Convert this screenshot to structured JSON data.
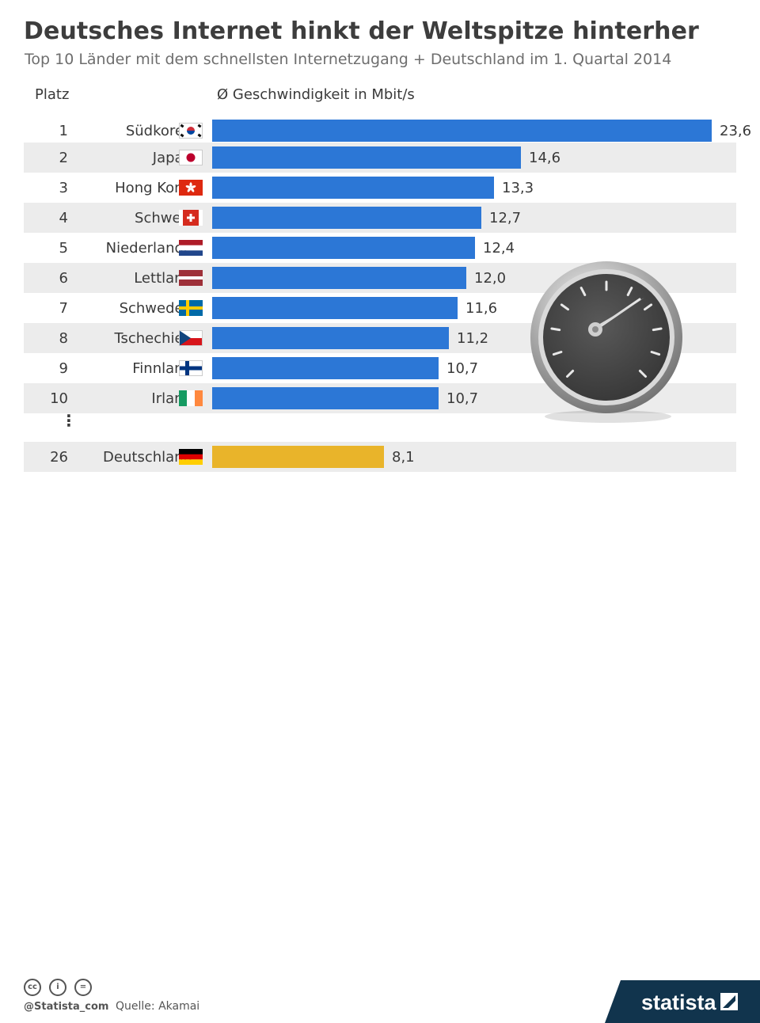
{
  "title": "Deutsches Internet hinkt der Weltspitze hinterher",
  "subtitle": "Top 10 Länder mit dem schnellsten Internetzugang + Deutschland im 1. Quartal 2014",
  "header": {
    "rank_label": "Platz",
    "value_label": "Ø Geschwindigkeit in Mbit/s"
  },
  "ellipsis": "⋮",
  "colors": {
    "bar": "#2c77d6",
    "highlight": "#e9b42a",
    "stripe": "#ececec"
  },
  "chart_data": {
    "type": "bar",
    "orientation": "horizontal",
    "title": "Deutsches Internet hinkt der Weltspitze hinterher",
    "subtitle": "Top 10 Länder mit dem schnellsten Internetzugang + Deutschland im 1. Quartal 2014",
    "xlabel": "Ø Geschwindigkeit in Mbit/s",
    "ylabel": "Platz",
    "xlim": [
      0,
      23.6
    ],
    "rows": [
      {
        "rank": "1",
        "country": "Südkorea",
        "flag": "south-korea-flag",
        "value": 23.6,
        "label": "23,6",
        "highlight": false
      },
      {
        "rank": "2",
        "country": "Japan",
        "flag": "japan-flag",
        "value": 14.6,
        "label": "14,6",
        "highlight": false
      },
      {
        "rank": "3",
        "country": "Hong Kong",
        "flag": "hong-kong-flag",
        "value": 13.3,
        "label": "13,3",
        "highlight": false
      },
      {
        "rank": "4",
        "country": "Schweiz",
        "flag": "switzerland-flag",
        "value": 12.7,
        "label": "12,7",
        "highlight": false
      },
      {
        "rank": "5",
        "country": "Niederlande",
        "flag": "netherlands-flag",
        "value": 12.4,
        "label": "12,4",
        "highlight": false
      },
      {
        "rank": "6",
        "country": "Lettland",
        "flag": "latvia-flag",
        "value": 12.0,
        "label": "12,0",
        "highlight": false
      },
      {
        "rank": "7",
        "country": "Schweden",
        "flag": "sweden-flag",
        "value": 11.6,
        "label": "11,6",
        "highlight": false
      },
      {
        "rank": "8",
        "country": "Tschechien",
        "flag": "czech-flag",
        "value": 11.2,
        "label": "11,2",
        "highlight": false
      },
      {
        "rank": "9",
        "country": "Finnland",
        "flag": "finland-flag",
        "value": 10.7,
        "label": "10,7",
        "highlight": false
      },
      {
        "rank": "10",
        "country": "Irland",
        "flag": "ireland-flag",
        "value": 10.7,
        "label": "10,7",
        "highlight": false
      },
      {
        "rank": "26",
        "country": "Deutschland",
        "flag": "germany-flag",
        "value": 8.1,
        "label": "8,1",
        "highlight": true
      }
    ]
  },
  "footer": {
    "license_icons": [
      "cc-icon",
      "by-icon",
      "nd-icon"
    ],
    "license_glyphs": [
      "cc",
      "i",
      "="
    ],
    "handle": "@Statista_com",
    "source": "Quelle: Akamai",
    "brand": "statista"
  }
}
